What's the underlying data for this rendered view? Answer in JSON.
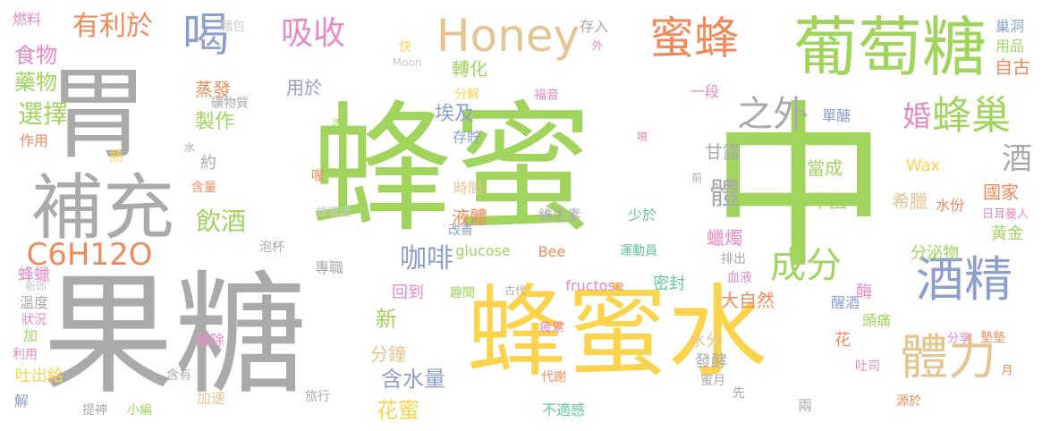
{
  "palette": {
    "green": "#a0d45c",
    "gray": "#aaaaaa",
    "yellow": "#fcd34d",
    "orange": "#f08a5d",
    "blue": "#8da0cb",
    "tan": "#e5c494",
    "pink": "#e78ac3",
    "teal": "#66c2a5",
    "lightgray": "#c8c8c8"
  },
  "words": [
    {
      "text": "蜂蜜",
      "color": "green"
    },
    {
      "text": "中",
      "color": "green"
    },
    {
      "text": "果糖",
      "color": "gray"
    },
    {
      "text": "蜂蜜水",
      "color": "yellow"
    },
    {
      "text": "胃",
      "color": "gray"
    },
    {
      "text": "葡萄糖",
      "color": "green"
    },
    {
      "text": "補充",
      "color": "gray"
    },
    {
      "text": "Honey",
      "color": "tan"
    },
    {
      "text": "喝",
      "color": "blue"
    },
    {
      "text": "蜜蜂",
      "color": "orange"
    },
    {
      "text": "酒精",
      "color": "blue"
    },
    {
      "text": "體力",
      "color": "tan"
    },
    {
      "text": "蜂巢",
      "color": "green"
    },
    {
      "text": "C6H12O",
      "color": "orange"
    },
    {
      "text": "吸收",
      "color": "pink"
    },
    {
      "text": "有利於",
      "color": "orange"
    },
    {
      "text": "之外",
      "color": "gray"
    },
    {
      "text": "成分",
      "color": "green"
    },
    {
      "text": "婚",
      "color": "pink"
    },
    {
      "text": "體",
      "color": "gray"
    },
    {
      "text": "酒",
      "color": "gray"
    },
    {
      "text": "咖啡",
      "color": "blue"
    },
    {
      "text": "飲酒",
      "color": "green"
    },
    {
      "text": "選擇",
      "color": "green"
    },
    {
      "text": "食物",
      "color": "pink"
    },
    {
      "text": "藥物",
      "color": "green"
    },
    {
      "text": "製作",
      "color": "green"
    },
    {
      "text": "埃及",
      "color": "blue"
    },
    {
      "text": "轉化",
      "color": "green"
    },
    {
      "text": "燃料",
      "color": "pink"
    },
    {
      "text": "麵包",
      "color": "lightgray"
    },
    {
      "text": "存入",
      "color": "gray"
    },
    {
      "text": "自古",
      "color": "orange"
    },
    {
      "text": "巢洞",
      "color": "blue"
    },
    {
      "text": "用品",
      "color": "green"
    },
    {
      "text": "快",
      "color": "yellow"
    },
    {
      "text": "外",
      "color": "pink"
    },
    {
      "text": "Moon",
      "color": "lightgray"
    },
    {
      "text": "福音",
      "color": "pink"
    },
    {
      "text": "一段",
      "color": "pink"
    },
    {
      "text": "單醣",
      "color": "blue"
    },
    {
      "text": "蒸發",
      "color": "orange"
    },
    {
      "text": "礦物質",
      "color": "gray"
    },
    {
      "text": "用於",
      "color": "blue"
    },
    {
      "text": "分解",
      "color": "yellow"
    },
    {
      "text": "存貯",
      "color": "blue"
    },
    {
      "text": "塗",
      "color": "green"
    },
    {
      "text": "作用",
      "color": "orange"
    },
    {
      "text": "熱",
      "color": "yellow"
    },
    {
      "text": "約",
      "color": "gray"
    },
    {
      "text": "水",
      "color": "gray"
    },
    {
      "text": "含量",
      "color": "orange"
    },
    {
      "text": "甘露",
      "color": "gray"
    },
    {
      "text": "當成",
      "color": "green"
    },
    {
      "text": "中國",
      "color": "green"
    },
    {
      "text": "希臘",
      "color": "tan"
    },
    {
      "text": "Wax",
      "color": "yellow"
    },
    {
      "text": "國家",
      "color": "orange"
    },
    {
      "text": "水份",
      "color": "orange"
    },
    {
      "text": "日耳曼人",
      "color": "pink"
    },
    {
      "text": "黃金",
      "color": "green"
    },
    {
      "text": "時間",
      "color": "tan"
    },
    {
      "text": "液體",
      "color": "orange"
    },
    {
      "text": "維生素",
      "color": "gray"
    },
    {
      "text": "少於",
      "color": "teal"
    },
    {
      "text": "前",
      "color": "gray"
    },
    {
      "text": "喔",
      "color": "orange"
    },
    {
      "text": "蜂蜜酒",
      "color": "lightgray"
    },
    {
      "text": "改善",
      "color": "blue"
    },
    {
      "text": "蠟燭",
      "color": "pink"
    },
    {
      "text": "分泌物",
      "color": "green"
    },
    {
      "text": "排出",
      "color": "gray"
    },
    {
      "text": "泡杯",
      "color": "gray"
    },
    {
      "text": "glucose",
      "color": "green"
    },
    {
      "text": "Bee",
      "color": "orange"
    },
    {
      "text": "運動員",
      "color": "teal"
    },
    {
      "text": "專職",
      "color": "gray"
    },
    {
      "text": "血液",
      "color": "pink"
    },
    {
      "text": "蜂蠟",
      "color": "pink"
    },
    {
      "text": "新郎",
      "color": "lightgray"
    },
    {
      "text": "回到",
      "color": "pink"
    },
    {
      "text": "趣聞",
      "color": "green"
    },
    {
      "text": "古代",
      "color": "gray"
    },
    {
      "text": "fructose",
      "color": "pink"
    },
    {
      "text": "密封",
      "color": "teal"
    },
    {
      "text": "大自然",
      "color": "orange"
    },
    {
      "text": "醒酒",
      "color": "blue"
    },
    {
      "text": "酶",
      "color": "pink"
    },
    {
      "text": "溫度",
      "color": "gray"
    },
    {
      "text": "狀況",
      "color": "pink"
    },
    {
      "text": "新",
      "color": "green"
    },
    {
      "text": "頭痛",
      "color": "green"
    },
    {
      "text": "疲累",
      "color": "pink"
    },
    {
      "text": "水分",
      "color": "tan"
    },
    {
      "text": "花",
      "color": "orange"
    },
    {
      "text": "分享",
      "color": "pink"
    },
    {
      "text": "墊墊",
      "color": "orange"
    },
    {
      "text": "加",
      "color": "green"
    },
    {
      "text": "解除",
      "color": "pink"
    },
    {
      "text": "利用",
      "color": "pink"
    },
    {
      "text": "分鐘",
      "color": "tan"
    },
    {
      "text": "發酵",
      "color": "gray"
    },
    {
      "text": "吐司",
      "color": "pink"
    },
    {
      "text": "吐出給",
      "color": "yellow"
    },
    {
      "text": "含有",
      "color": "gray"
    },
    {
      "text": "含水量",
      "color": "blue"
    },
    {
      "text": "代謝",
      "color": "orange"
    },
    {
      "text": "蜜月",
      "color": "gray"
    },
    {
      "text": "月",
      "color": "orange"
    },
    {
      "text": "解",
      "color": "blue"
    },
    {
      "text": "加速",
      "color": "tan"
    },
    {
      "text": "旅行",
      "color": "gray"
    },
    {
      "text": "花蜜",
      "color": "yellow"
    },
    {
      "text": "先",
      "color": "gray"
    },
    {
      "text": "兩",
      "color": "gray"
    },
    {
      "text": "提神",
      "color": "gray"
    },
    {
      "text": "小編",
      "color": "green"
    },
    {
      "text": "不適感",
      "color": "teal"
    },
    {
      "text": "源於",
      "color": "orange"
    },
    {
      "text": "唷",
      "color": "pink"
    }
  ]
}
